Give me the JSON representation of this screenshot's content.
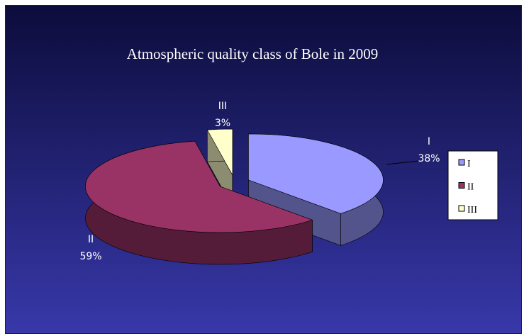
{
  "chart_data": {
    "type": "pie3d",
    "title": "Atmospheric quality class of Bole in 2009",
    "categories": [
      "I",
      "II",
      "III"
    ],
    "values": [
      38,
      59,
      3
    ],
    "value_labels": [
      "38%",
      "59%",
      "3%"
    ],
    "colors": [
      "#9999ff",
      "#993366",
      "#ffffcc"
    ],
    "legend": "right"
  }
}
